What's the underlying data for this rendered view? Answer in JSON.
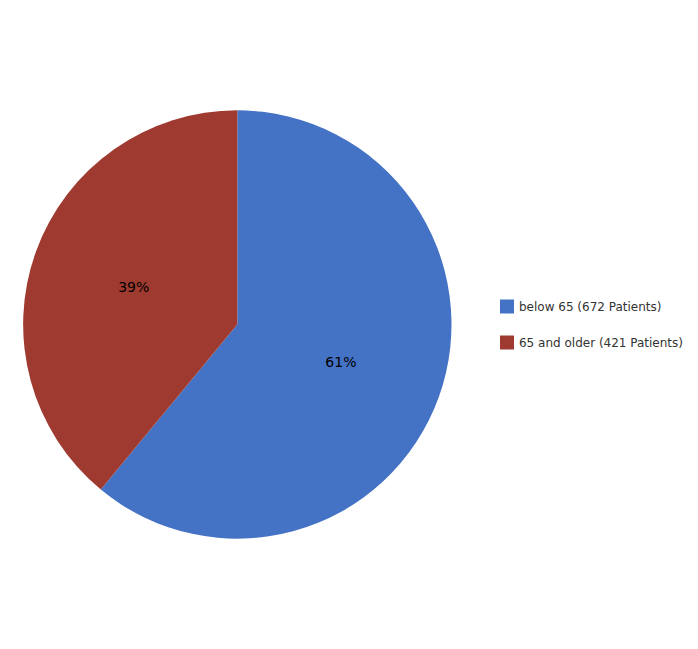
{
  "chart_data": {
    "type": "pie",
    "categories": [
      "below 65 (672 Patients)",
      "65 and older (421 Patients)"
    ],
    "values": [
      61,
      39
    ],
    "value_labels": [
      "61%",
      "39%"
    ],
    "colors": [
      "#4472C4",
      "#9E3A2F"
    ],
    "data_labels": true,
    "legend": "right"
  }
}
